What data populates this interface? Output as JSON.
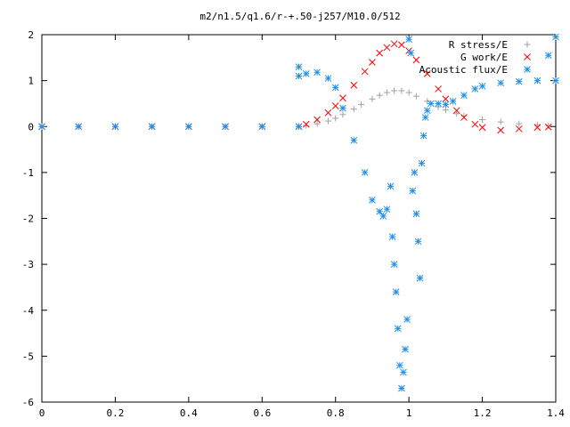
{
  "chart_data": {
    "type": "scatter",
    "title": "m2/n1.5/q1.6/r-+.50-j257/M10.0/512",
    "xlabel": "",
    "ylabel": "",
    "xlim": [
      0,
      1.4
    ],
    "ylim": [
      -6,
      2
    ],
    "xticks": [
      0,
      0.2,
      0.4,
      0.6,
      0.8,
      1,
      1.2,
      1.4
    ],
    "xtick_labels": [
      "0",
      "0.2",
      "0.4",
      "0.6",
      "0.8",
      "1",
      "1.2",
      "1.4"
    ],
    "yticks": [
      2,
      1,
      0,
      -1,
      -2,
      -3,
      -4,
      -5,
      -6
    ],
    "ytick_labels": [
      "2",
      "1",
      "0",
      "-1",
      "-2",
      "-3",
      "-4",
      "-5",
      "-6"
    ],
    "grid": false,
    "legend_position": "top-right",
    "series": [
      {
        "name": "R stress/E",
        "marker": "+",
        "color": "#a0a0a0",
        "x": [
          0.0,
          0.1,
          0.2,
          0.3,
          0.4,
          0.5,
          0.6,
          0.7,
          0.72,
          0.75,
          0.78,
          0.8,
          0.82,
          0.85,
          0.87,
          0.9,
          0.92,
          0.94,
          0.96,
          0.98,
          1.0,
          1.02,
          1.05,
          1.08,
          1.1,
          1.13,
          1.15,
          1.2,
          1.25,
          1.3,
          1.35,
          1.38
        ],
        "y": [
          0,
          0,
          0,
          0,
          0,
          0,
          0,
          0,
          0.02,
          0.06,
          0.12,
          0.18,
          0.26,
          0.38,
          0.48,
          0.6,
          0.68,
          0.74,
          0.78,
          0.78,
          0.74,
          0.66,
          0.55,
          0.43,
          0.36,
          0.28,
          0.23,
          0.15,
          0.1,
          0.06,
          0.04,
          0.02
        ]
      },
      {
        "name": "G work/E",
        "marker": "x",
        "color": "#ff0000",
        "x": [
          0.0,
          0.1,
          0.2,
          0.3,
          0.4,
          0.5,
          0.6,
          0.7,
          0.72,
          0.75,
          0.78,
          0.8,
          0.82,
          0.85,
          0.88,
          0.9,
          0.92,
          0.94,
          0.96,
          0.98,
          1.0,
          1.02,
          1.05,
          1.08,
          1.1,
          1.13,
          1.15,
          1.18,
          1.2,
          1.25,
          1.3,
          1.35,
          1.38
        ],
        "y": [
          0,
          0,
          0,
          0,
          0,
          0,
          0,
          0,
          0.05,
          0.15,
          0.3,
          0.45,
          0.62,
          0.9,
          1.2,
          1.4,
          1.6,
          1.72,
          1.8,
          1.78,
          1.65,
          1.45,
          1.15,
          0.82,
          0.6,
          0.35,
          0.2,
          0.05,
          -0.02,
          -0.08,
          -0.05,
          -0.02,
          -0.01
        ]
      },
      {
        "name": "Acoustic flux/E",
        "marker": "*",
        "color": "#1f8ee8",
        "x": [
          0.0,
          0.1,
          0.2,
          0.3,
          0.4,
          0.5,
          0.6,
          0.7,
          0.7,
          0.7,
          0.72,
          0.75,
          0.78,
          0.8,
          0.82,
          0.85,
          0.88,
          0.9,
          0.92,
          0.93,
          0.94,
          0.95,
          0.955,
          0.96,
          0.965,
          0.97,
          0.975,
          0.98,
          0.985,
          0.99,
          0.995,
          1.0,
          1.005,
          1.01,
          1.015,
          1.02,
          1.025,
          1.03,
          1.035,
          1.04,
          1.045,
          1.05,
          1.06,
          1.08,
          1.1,
          1.12,
          1.15,
          1.18,
          1.2,
          1.25,
          1.3,
          1.35,
          1.38,
          1.4,
          1.4
        ],
        "y": [
          0,
          0,
          0,
          0,
          0,
          0,
          0,
          0,
          1.3,
          1.1,
          1.15,
          1.18,
          1.05,
          0.85,
          0.4,
          -0.3,
          -1.0,
          -1.6,
          -1.85,
          -1.95,
          -1.8,
          -1.3,
          -2.4,
          -3.0,
          -3.6,
          -4.4,
          -5.2,
          -5.7,
          -5.35,
          -4.85,
          -4.2,
          1.9,
          1.6,
          -1.4,
          -1.0,
          -1.9,
          -2.5,
          -3.3,
          -0.8,
          -0.2,
          0.2,
          0.35,
          0.5,
          0.5,
          0.48,
          0.55,
          0.68,
          0.82,
          0.88,
          0.95,
          0.98,
          1.0,
          1.55,
          1.95,
          1.0
        ]
      }
    ]
  }
}
